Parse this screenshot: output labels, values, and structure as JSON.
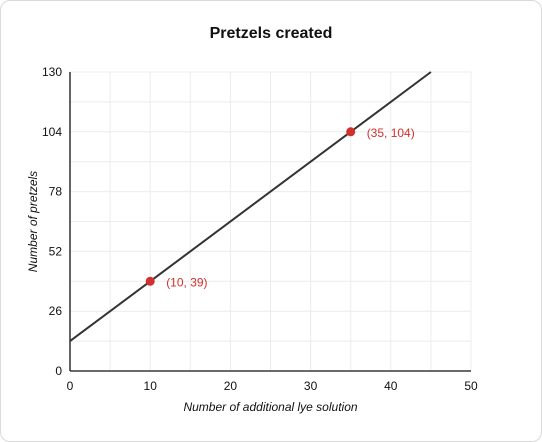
{
  "chart_data": {
    "type": "line",
    "title": "Pretzels created",
    "xlabel": "Number of additional lye solution",
    "ylabel": "Number of pretzels",
    "xlim": [
      0,
      50
    ],
    "ylim": [
      0,
      130
    ],
    "x_ticks": [
      0,
      10,
      20,
      30,
      40,
      50
    ],
    "y_ticks": [
      0,
      26,
      52,
      78,
      104,
      130
    ],
    "grid": true,
    "line": {
      "slope": 2.6,
      "intercept": 13,
      "x_range": [
        0,
        45
      ]
    },
    "points": [
      {
        "x": 10,
        "y": 39,
        "label": "(10, 39)"
      },
      {
        "x": 35,
        "y": 104,
        "label": "(35, 104)"
      }
    ],
    "colors": {
      "line": "#333333",
      "points": "#d0312d",
      "grid": "#ececec",
      "axis": "#111111"
    }
  }
}
